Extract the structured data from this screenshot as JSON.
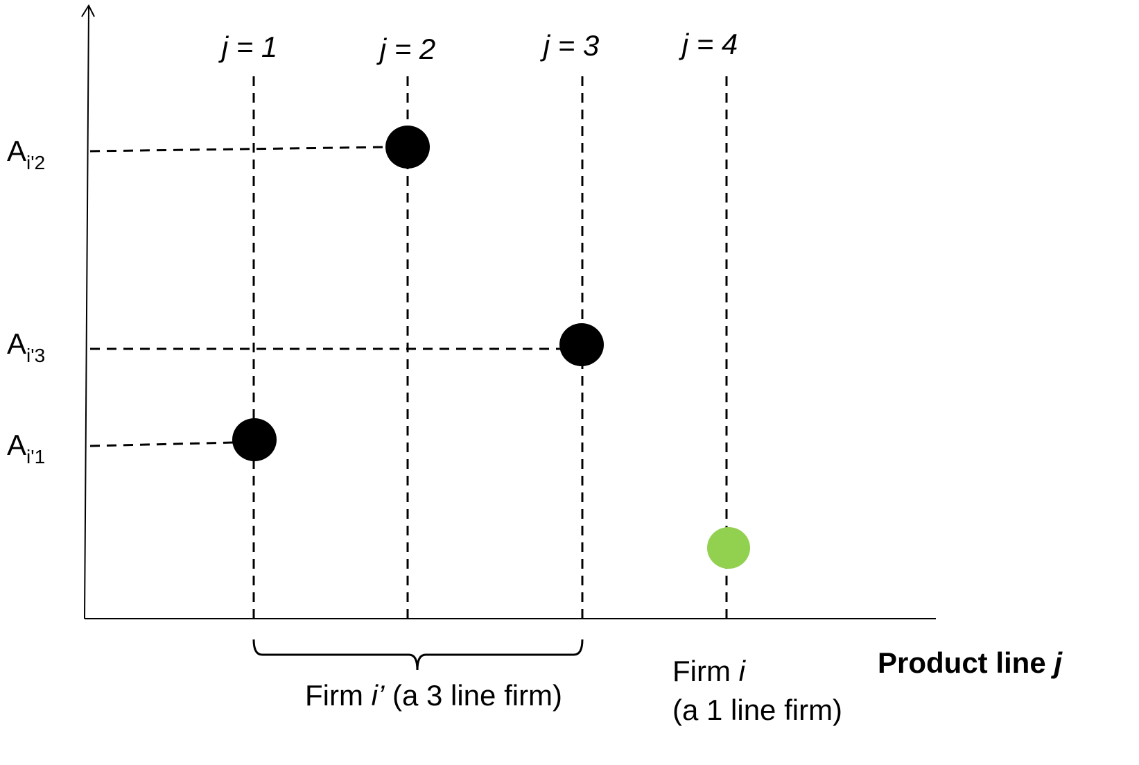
{
  "columns": [
    {
      "label": "j = 1"
    },
    {
      "label": "j = 2"
    },
    {
      "label": "j = 3"
    },
    {
      "label": "j = 4"
    }
  ],
  "y_labels": [
    {
      "base": "A",
      "sub": "i'2"
    },
    {
      "base": "A",
      "sub": "i'3"
    },
    {
      "base": "A",
      "sub": "i'1"
    }
  ],
  "x_axis_label": {
    "text": "Product line ",
    "italic": "j"
  },
  "firm_multi": {
    "prefix": "Firm ",
    "italic": "i’",
    "suffix": " (a 3 line firm)"
  },
  "firm_single": {
    "prefix": "Firm ",
    "italic": "i",
    "line2": "(a 1 line firm)"
  },
  "colors": {
    "ink": "#000000",
    "firm_i_prime": "#000000",
    "firm_i": "#92d050"
  }
}
